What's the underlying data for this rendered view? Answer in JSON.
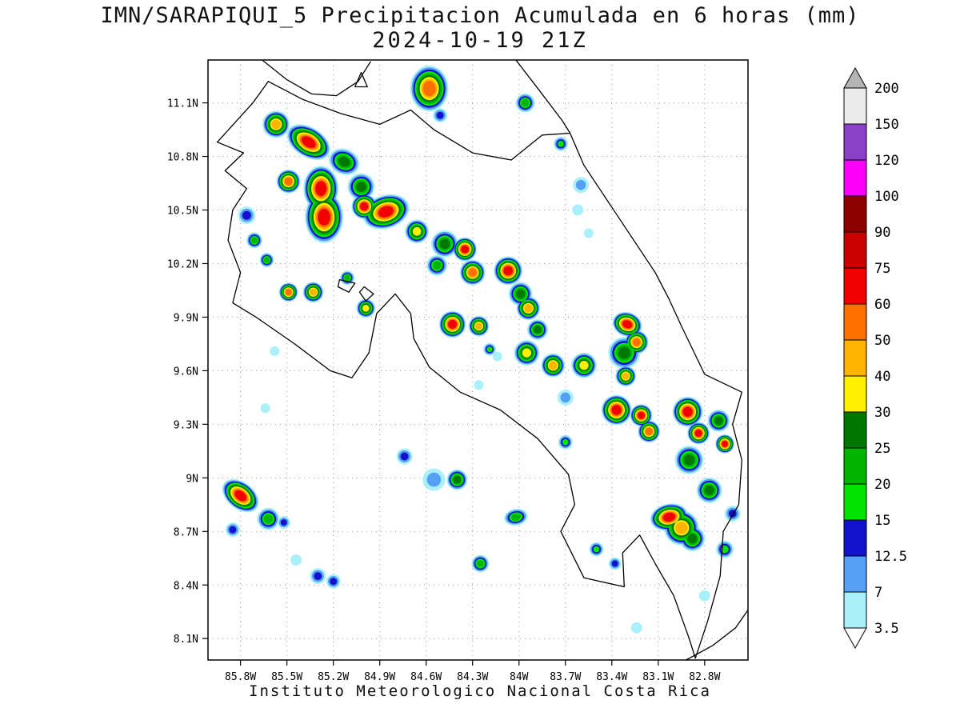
{
  "title": {
    "line1": "IMN/SARAPIQUI_5 Precipitacion Acumulada en 6 horas (mm)",
    "line2": "2024-10-19 21Z"
  },
  "footer": "Instituto Meteorologico Nacional Costa Rica",
  "chart_data": {
    "type": "heatmap",
    "title": "IMN/SARAPIQUI_5 Precipitacion Acumulada en 6 horas (mm)",
    "subtitle": "2024-10-19 21Z",
    "units": "mm",
    "grid": true,
    "lon_range": [
      -86.01,
      -82.52
    ],
    "lat_range": [
      7.98,
      11.34
    ],
    "x_axis": {
      "ticks": [
        {
          "label": "85.8W",
          "value": -85.8
        },
        {
          "label": "85.5W",
          "value": -85.5
        },
        {
          "label": "85.2W",
          "value": -85.2
        },
        {
          "label": "84.9W",
          "value": -84.9
        },
        {
          "label": "84.6W",
          "value": -84.6
        },
        {
          "label": "84.3W",
          "value": -84.3
        },
        {
          "label": "84W",
          "value": -84.0
        },
        {
          "label": "83.7W",
          "value": -83.7
        },
        {
          "label": "83.4W",
          "value": -83.4
        },
        {
          "label": "83.1W",
          "value": -83.1
        },
        {
          "label": "82.8W",
          "value": -82.8
        }
      ]
    },
    "y_axis": {
      "ticks": [
        {
          "label": "8.1N",
          "value": 8.1
        },
        {
          "label": "8.4N",
          "value": 8.4
        },
        {
          "label": "8.7N",
          "value": 8.7
        },
        {
          "label": "9N",
          "value": 9.0
        },
        {
          "label": "9.3N",
          "value": 9.3
        },
        {
          "label": "9.6N",
          "value": 9.6
        },
        {
          "label": "9.9N",
          "value": 9.9
        },
        {
          "label": "10.2N",
          "value": 10.2
        },
        {
          "label": "10.5N",
          "value": 10.5
        },
        {
          "label": "10.8N",
          "value": 10.8
        },
        {
          "label": "11.1N",
          "value": 11.1
        }
      ]
    },
    "colorbar": {
      "position": "right",
      "levels": [
        3.5,
        7,
        12.5,
        15,
        20,
        25,
        30,
        40,
        50,
        60,
        75,
        90,
        100,
        120,
        150,
        200
      ],
      "colors": [
        "#aaf0fa",
        "#55a0f5",
        "#1212cc",
        "#00e400",
        "#00b400",
        "#007800",
        "#fff000",
        "#ffb400",
        "#ff6e00",
        "#f00000",
        "#c80000",
        "#8c0000",
        "#fa00fa",
        "#8a40c8",
        "#ebebeb"
      ],
      "under_color": "#ffffff",
      "over_color": "#b4b4b4"
    },
    "cells": [
      {
        "lon": -84.58,
        "lat": 11.18,
        "lv": 8,
        "r": 24,
        "ar": 1.2
      },
      {
        "lon": -84.51,
        "lat": 11.03,
        "lv": 2,
        "r": 9
      },
      {
        "lon": -83.96,
        "lat": 11.1,
        "lv": 4,
        "r": 12
      },
      {
        "lon": -83.73,
        "lat": 10.87,
        "lv": 3,
        "r": 9
      },
      {
        "lon": -83.6,
        "lat": 10.64,
        "lv": 1,
        "r": 10
      },
      {
        "lon": -83.62,
        "lat": 10.5,
        "lv": 0,
        "r": 7
      },
      {
        "lon": -83.55,
        "lat": 10.37,
        "lv": 0,
        "r": 6
      },
      {
        "lon": -85.57,
        "lat": 10.98,
        "lv": 7,
        "r": 17
      },
      {
        "lon": -85.36,
        "lat": 10.88,
        "lv": 9,
        "r": 30,
        "ar": 0.62,
        "rot": 32
      },
      {
        "lon": -85.13,
        "lat": 10.77,
        "lv": 5,
        "r": 20,
        "ar": 0.8,
        "rot": 25
      },
      {
        "lon": -85.49,
        "lat": 10.66,
        "lv": 8,
        "r": 15
      },
      {
        "lon": -85.28,
        "lat": 10.62,
        "lv": 9,
        "r": 22,
        "ar": 1.3
      },
      {
        "lon": -85.26,
        "lat": 10.46,
        "lv": 9,
        "r": 24,
        "ar": 1.35
      },
      {
        "lon": -85.02,
        "lat": 10.63,
        "lv": 5,
        "r": 17
      },
      {
        "lon": -85.0,
        "lat": 10.52,
        "lv": 9,
        "r": 16
      },
      {
        "lon": -84.86,
        "lat": 10.49,
        "lv": 9,
        "r": 30,
        "ar": 0.7,
        "rot": -18
      },
      {
        "lon": -84.66,
        "lat": 10.38,
        "lv": 6,
        "r": 15
      },
      {
        "lon": -84.48,
        "lat": 10.31,
        "lv": 5,
        "r": 17
      },
      {
        "lon": -84.35,
        "lat": 10.28,
        "lv": 9,
        "r": 15
      },
      {
        "lon": -84.53,
        "lat": 10.19,
        "lv": 4,
        "r": 13
      },
      {
        "lon": -84.3,
        "lat": 10.15,
        "lv": 8,
        "r": 16
      },
      {
        "lon": -84.07,
        "lat": 10.16,
        "lv": 9,
        "r": 18
      },
      {
        "lon": -83.99,
        "lat": 10.03,
        "lv": 5,
        "r": 15
      },
      {
        "lon": -85.76,
        "lat": 10.47,
        "lv": 2,
        "r": 11
      },
      {
        "lon": -85.71,
        "lat": 10.33,
        "lv": 4,
        "r": 10
      },
      {
        "lon": -85.63,
        "lat": 10.22,
        "lv": 4,
        "r": 9
      },
      {
        "lon": -85.49,
        "lat": 10.04,
        "lv": 8,
        "r": 12
      },
      {
        "lon": -85.33,
        "lat": 10.04,
        "lv": 7,
        "r": 13
      },
      {
        "lon": -85.11,
        "lat": 10.12,
        "lv": 4,
        "r": 9
      },
      {
        "lon": -84.99,
        "lat": 9.95,
        "lv": 6,
        "r": 12
      },
      {
        "lon": -84.43,
        "lat": 9.86,
        "lv": 9,
        "r": 17
      },
      {
        "lon": -84.26,
        "lat": 9.85,
        "lv": 7,
        "r": 13
      },
      {
        "lon": -84.19,
        "lat": 9.72,
        "lv": 3,
        "r": 8
      },
      {
        "lon": -84.14,
        "lat": 9.68,
        "lv": 0,
        "r": 6
      },
      {
        "lon": -84.26,
        "lat": 9.52,
        "lv": 0,
        "r": 6
      },
      {
        "lon": -83.94,
        "lat": 9.95,
        "lv": 7,
        "r": 15
      },
      {
        "lon": -83.88,
        "lat": 9.83,
        "lv": 5,
        "r": 13
      },
      {
        "lon": -83.95,
        "lat": 9.7,
        "lv": 6,
        "r": 16
      },
      {
        "lon": -83.78,
        "lat": 9.63,
        "lv": 7,
        "r": 15
      },
      {
        "lon": -83.58,
        "lat": 9.63,
        "lv": 6,
        "r": 16
      },
      {
        "lon": -83.7,
        "lat": 9.45,
        "lv": 1,
        "r": 10
      },
      {
        "lon": -83.7,
        "lat": 9.2,
        "lv": 3,
        "r": 9
      },
      {
        "lon": -83.3,
        "lat": 9.86,
        "lv": 9,
        "r": 19,
        "ar": 0.8,
        "rot": 20
      },
      {
        "lon": -83.24,
        "lat": 9.76,
        "lv": 8,
        "r": 15
      },
      {
        "lon": -83.32,
        "lat": 9.7,
        "lv": 5,
        "r": 20
      },
      {
        "lon": -83.31,
        "lat": 9.57,
        "lv": 7,
        "r": 13
      },
      {
        "lon": -83.37,
        "lat": 9.38,
        "lv": 9,
        "r": 19
      },
      {
        "lon": -83.21,
        "lat": 9.35,
        "lv": 9,
        "r": 14
      },
      {
        "lon": -83.16,
        "lat": 9.26,
        "lv": 8,
        "r": 14
      },
      {
        "lon": -82.91,
        "lat": 9.37,
        "lv": 9,
        "r": 19
      },
      {
        "lon": -82.84,
        "lat": 9.25,
        "lv": 9,
        "r": 14
      },
      {
        "lon": -82.71,
        "lat": 9.32,
        "lv": 5,
        "r": 14
      },
      {
        "lon": -82.67,
        "lat": 9.19,
        "lv": 9,
        "r": 12
      },
      {
        "lon": -82.9,
        "lat": 9.1,
        "lv": 5,
        "r": 18
      },
      {
        "lon": -82.77,
        "lat": 8.93,
        "lv": 5,
        "r": 16
      },
      {
        "lon": -82.62,
        "lat": 8.8,
        "lv": 2,
        "r": 10
      },
      {
        "lon": -85.8,
        "lat": 8.9,
        "lv": 9,
        "r": 26,
        "ar": 0.65,
        "rot": 38
      },
      {
        "lon": -85.62,
        "lat": 8.77,
        "lv": 4,
        "r": 14
      },
      {
        "lon": -85.85,
        "lat": 8.71,
        "lv": 2,
        "r": 9
      },
      {
        "lon": -85.52,
        "lat": 8.75,
        "lv": 2,
        "r": 8
      },
      {
        "lon": -85.44,
        "lat": 8.54,
        "lv": 0,
        "r": 7
      },
      {
        "lon": -85.3,
        "lat": 8.45,
        "lv": 2,
        "r": 10
      },
      {
        "lon": -85.2,
        "lat": 8.42,
        "lv": 2,
        "r": 9
      },
      {
        "lon": -85.64,
        "lat": 9.39,
        "lv": 0,
        "r": 6
      },
      {
        "lon": -85.58,
        "lat": 9.71,
        "lv": 0,
        "r": 6
      },
      {
        "lon": -84.74,
        "lat": 9.12,
        "lv": 2,
        "r": 10
      },
      {
        "lon": -84.55,
        "lat": 8.99,
        "lv": 1,
        "r": 14
      },
      {
        "lon": -84.4,
        "lat": 8.99,
        "lv": 5,
        "r": 13
      },
      {
        "lon": -84.25,
        "lat": 8.52,
        "lv": 4,
        "r": 11
      },
      {
        "lon": -84.02,
        "lat": 8.78,
        "lv": 4,
        "r": 15,
        "ar": 0.7,
        "rot": -10
      },
      {
        "lon": -83.5,
        "lat": 8.6,
        "lv": 3,
        "r": 9
      },
      {
        "lon": -83.38,
        "lat": 8.52,
        "lv": 2,
        "r": 8
      },
      {
        "lon": -83.03,
        "lat": 8.78,
        "lv": 9,
        "r": 24,
        "ar": 0.7,
        "rot": -12
      },
      {
        "lon": -82.95,
        "lat": 8.72,
        "lv": 7,
        "r": 22
      },
      {
        "lon": -82.88,
        "lat": 8.66,
        "lv": 5,
        "r": 16
      },
      {
        "lon": -82.67,
        "lat": 8.6,
        "lv": 3,
        "r": 11
      },
      {
        "lon": -82.8,
        "lat": 8.34,
        "lv": 0,
        "r": 7
      },
      {
        "lon": -83.24,
        "lat": 8.16,
        "lv": 0,
        "r": 7
      }
    ],
    "coastline": [
      {
        "name": "costa-rica-mainland",
        "closed": true,
        "pts": [
          [
            -85.72,
            11.1
          ],
          [
            -85.95,
            10.88
          ],
          [
            -85.78,
            10.82
          ],
          [
            -85.9,
            10.72
          ],
          [
            -85.76,
            10.62
          ],
          [
            -85.85,
            10.5
          ],
          [
            -85.88,
            10.33
          ],
          [
            -85.8,
            10.15
          ],
          [
            -85.85,
            9.98
          ],
          [
            -85.7,
            9.9
          ],
          [
            -85.45,
            9.75
          ],
          [
            -85.22,
            9.6
          ],
          [
            -85.08,
            9.56
          ],
          [
            -84.97,
            9.7
          ],
          [
            -84.92,
            9.92
          ],
          [
            -84.8,
            10.03
          ],
          [
            -84.7,
            9.92
          ],
          [
            -84.68,
            9.78
          ],
          [
            -84.58,
            9.62
          ],
          [
            -84.38,
            9.48
          ],
          [
            -84.12,
            9.38
          ],
          [
            -83.88,
            9.22
          ],
          [
            -83.68,
            9.02
          ],
          [
            -83.64,
            8.85
          ],
          [
            -83.73,
            8.7
          ],
          [
            -83.58,
            8.44
          ],
          [
            -83.32,
            8.39
          ],
          [
            -83.33,
            8.58
          ],
          [
            -83.22,
            8.68
          ],
          [
            -83.12,
            8.52
          ],
          [
            -83.0,
            8.34
          ],
          [
            -82.9,
            8.1
          ],
          [
            -82.86,
            7.99
          ],
          [
            -82.78,
            8.2
          ],
          [
            -82.7,
            8.45
          ],
          [
            -82.68,
            8.7
          ],
          [
            -82.58,
            8.85
          ],
          [
            -82.56,
            9.1
          ],
          [
            -82.62,
            9.3
          ],
          [
            -82.56,
            9.48
          ],
          [
            -82.8,
            9.58
          ],
          [
            -82.95,
            9.85
          ],
          [
            -83.03,
            10.0
          ],
          [
            -83.12,
            10.15
          ],
          [
            -83.35,
            10.45
          ],
          [
            -83.58,
            10.75
          ],
          [
            -83.67,
            10.93
          ],
          [
            -83.85,
            10.92
          ],
          [
            -84.05,
            10.78
          ],
          [
            -84.3,
            10.82
          ],
          [
            -84.55,
            10.95
          ],
          [
            -84.7,
            11.06
          ],
          [
            -84.9,
            10.98
          ],
          [
            -85.15,
            11.04
          ],
          [
            -85.4,
            11.12
          ],
          [
            -85.62,
            11.22
          ]
        ]
      },
      {
        "name": "lake-nicaragua-shore",
        "closed": false,
        "pts": [
          [
            -85.66,
            11.34
          ],
          [
            -85.5,
            11.23
          ],
          [
            -85.34,
            11.15
          ],
          [
            -85.18,
            11.14
          ],
          [
            -85.04,
            11.22
          ],
          [
            -84.96,
            11.33
          ]
        ]
      },
      {
        "name": "nicaragua-caribbean-coast",
        "closed": false,
        "pts": [
          [
            -84.02,
            11.34
          ],
          [
            -83.86,
            11.16
          ],
          [
            -83.72,
            11.0
          ],
          [
            -83.67,
            10.93
          ]
        ]
      },
      {
        "name": "panama-pacific-coast",
        "closed": false,
        "pts": [
          [
            -82.92,
            7.98
          ],
          [
            -82.75,
            8.06
          ],
          [
            -82.6,
            8.16
          ],
          [
            -82.52,
            8.26
          ]
        ]
      },
      {
        "name": "ometepe-island",
        "closed": true,
        "pts": [
          [
            -85.06,
            11.19
          ],
          [
            -84.98,
            11.19
          ],
          [
            -85.02,
            11.27
          ]
        ]
      },
      {
        "name": "chira-island",
        "closed": true,
        "pts": [
          [
            -85.16,
            10.11
          ],
          [
            -85.06,
            10.09
          ],
          [
            -85.1,
            10.04
          ],
          [
            -85.17,
            10.07
          ]
        ]
      },
      {
        "name": "nicoya-gulf-island",
        "closed": true,
        "pts": [
          [
            -85.0,
            10.07
          ],
          [
            -84.94,
            10.03
          ],
          [
            -84.99,
            9.99
          ],
          [
            -85.03,
            10.04
          ]
        ]
      }
    ]
  }
}
